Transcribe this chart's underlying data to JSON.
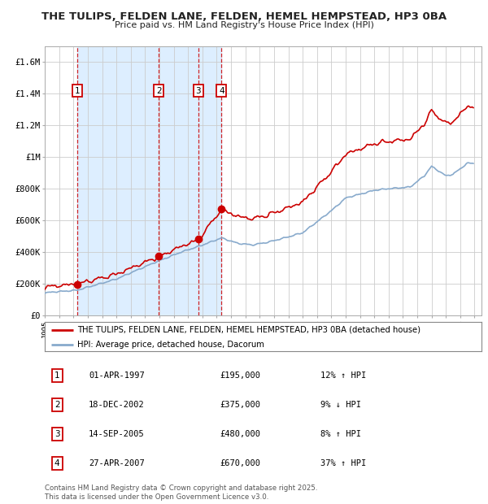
{
  "title": "THE TULIPS, FELDEN LANE, FELDEN, HEMEL HEMPSTEAD, HP3 0BA",
  "subtitle": "Price paid vs. HM Land Registry's House Price Index (HPI)",
  "legend_line1": "THE TULIPS, FELDEN LANE, FELDEN, HEMEL HEMPSTEAD, HP3 0BA (detached house)",
  "legend_line2": "HPI: Average price, detached house, Dacorum",
  "footer": "Contains HM Land Registry data © Crown copyright and database right 2025.\nThis data is licensed under the Open Government Licence v3.0.",
  "transactions": [
    {
      "num": 1,
      "date": "01-APR-1997",
      "price": 195000,
      "hpi_pct": "12%",
      "hpi_dir": "↑"
    },
    {
      "num": 2,
      "date": "18-DEC-2002",
      "price": 375000,
      "hpi_pct": "9%",
      "hpi_dir": "↓"
    },
    {
      "num": 3,
      "date": "14-SEP-2005",
      "price": 480000,
      "hpi_pct": "8%",
      "hpi_dir": "↑"
    },
    {
      "num": 4,
      "date": "27-APR-2007",
      "price": 670000,
      "hpi_pct": "37%",
      "hpi_dir": "↑"
    }
  ],
  "price_line_color": "#cc0000",
  "hpi_line_color": "#88aacc",
  "dashed_line_color": "#cc0000",
  "shaded_region_color": "#ddeeff",
  "background_color": "#ffffff",
  "grid_color": "#cccccc",
  "ylim": [
    0,
    1700000
  ],
  "yticks": [
    0,
    200000,
    400000,
    600000,
    800000,
    1000000,
    1200000,
    1400000,
    1600000
  ],
  "ytick_labels": [
    "£0",
    "£200K",
    "£400K",
    "£600K",
    "£800K",
    "£1M",
    "£1.2M",
    "£1.4M",
    "£1.6M"
  ],
  "xstart_year": 1995,
  "xend_year": 2025,
  "transaction_decimals": [
    1997.25,
    2002.96,
    2005.71,
    2007.33
  ],
  "transaction_prices": [
    195000,
    375000,
    480000,
    670000
  ]
}
